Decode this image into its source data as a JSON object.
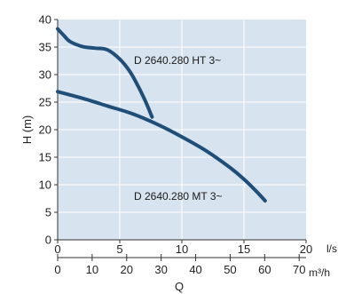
{
  "chart_data": {
    "type": "line",
    "title": "",
    "ylabel": "H (m)",
    "xlabel": "Q",
    "x_unit_primary": "l/s",
    "x_unit_secondary": "m³/h",
    "xlim": [
      0,
      20
    ],
    "ylim": [
      0,
      40
    ],
    "x_ticks": [
      "0",
      "5",
      "10",
      "15",
      "20"
    ],
    "x2_ticks": [
      "0",
      "10",
      "20",
      "30",
      "40",
      "50",
      "60",
      "70"
    ],
    "y_ticks": [
      "0",
      "5",
      "10",
      "15",
      "20",
      "25",
      "30",
      "35",
      "40"
    ],
    "grid": true,
    "colors": {
      "plot_bg": "#d7e3ee",
      "curve": "#1f4e79"
    },
    "series": [
      {
        "name": "D 2640.280 HT 3~",
        "x": [
          0,
          0.5,
          1,
          2,
          3,
          4,
          5,
          5.8,
          6.5,
          7.1,
          7.6
        ],
        "y": [
          38.3,
          37.1,
          36.0,
          35.1,
          34.8,
          34.5,
          32.8,
          30.6,
          27.8,
          25.0,
          22.3
        ]
      },
      {
        "name": "D 2640.280 MT 3~",
        "x": [
          0,
          2,
          4,
          6,
          8,
          10,
          12,
          14,
          15,
          16,
          16.7
        ],
        "y": [
          26.9,
          25.7,
          24.3,
          22.9,
          21.0,
          18.7,
          16.1,
          12.9,
          11.0,
          8.8,
          7.1
        ]
      }
    ]
  }
}
